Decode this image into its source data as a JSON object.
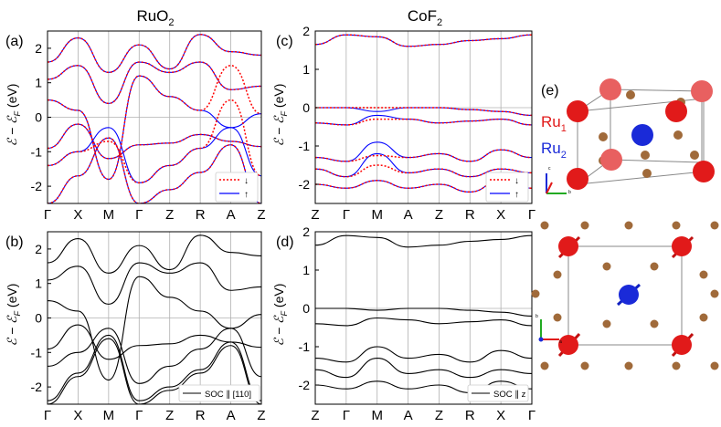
{
  "figure": {
    "col_titles": {
      "left": "RuO",
      "left_sub": "2",
      "right": "CoF",
      "right_sub": "2"
    },
    "ylabel_main": "ℰ − ℰ",
    "ylabel_sub": "F",
    "ylabel_unit": " (eV)",
    "panel_labels": {
      "a": "(a)",
      "b": "(b)",
      "c": "(c)",
      "d": "(d)",
      "e": "(e)"
    },
    "legend_a": {
      "down": "↓",
      "up": "↑"
    },
    "legend_c": {
      "down": "↓",
      "up": "↑"
    },
    "legend_b": "SOC ∥ [110]",
    "legend_d": "SOC ∥ z",
    "crystal_labels": {
      "ru1": "Ru",
      "ru1_sub": "1",
      "ru2": "Ru",
      "ru2_sub": "2"
    },
    "axis_glyphs": {
      "c": "c",
      "a": "a",
      "b": "b"
    }
  },
  "colors": {
    "spin_down": "#ff0000",
    "spin_up": "#0000ff",
    "soc": "#000000",
    "grid": "#b0b0b0",
    "ru1": "#e11a1a",
    "ru2": "#1a2ad8",
    "oxygen": "#a06a3a"
  },
  "chart_data": [
    {
      "id": "a",
      "type": "line",
      "title": "RuO2",
      "ylabel": "ℰ − ℰF (eV)",
      "ylim": [
        -2.5,
        2.5
      ],
      "yticks": [
        -2,
        -1,
        0,
        1,
        2
      ],
      "kpath": [
        "Γ",
        "X",
        "M",
        "Γ",
        "Z",
        "R",
        "A",
        "Z"
      ],
      "legend": [
        "↓",
        "↑"
      ],
      "series": [
        {
          "name": "↑",
          "bands": [
            [
              -2.5,
              -1.7,
              -0.6,
              -2.5,
              -2.1,
              -1.6,
              -0.8,
              -2.5
            ],
            [
              -1.4,
              -1.0,
              -0.3,
              -1.9,
              -1.4,
              -0.9,
              -0.3,
              -1.7
            ],
            [
              -0.9,
              -0.2,
              -1.2,
              -0.8,
              -0.75,
              -0.5,
              -0.7,
              -0.85
            ],
            [
              0.5,
              0.2,
              -1.8,
              1.2,
              0.6,
              0.2,
              -0.3,
              0.1
            ],
            [
              1.1,
              1.5,
              0.4,
              1.6,
              1.3,
              1.6,
              0.8,
              0.9
            ],
            [
              1.6,
              2.3,
              1.3,
              2.1,
              1.4,
              2.4,
              1.9,
              1.8
            ]
          ]
        },
        {
          "name": "↓",
          "bands": [
            [
              -2.5,
              -1.7,
              -0.6,
              -2.5,
              -2.1,
              -1.6,
              -0.8,
              -2.5
            ],
            [
              -1.4,
              -1.0,
              -0.7,
              -1.9,
              -1.4,
              -0.9,
              0.5,
              -1.7
            ],
            [
              -0.9,
              -0.2,
              -1.2,
              -0.8,
              -0.75,
              -0.5,
              -0.7,
              -0.85
            ],
            [
              0.5,
              0.2,
              -1.8,
              1.2,
              0.6,
              0.2,
              1.5,
              0.1
            ],
            [
              1.1,
              1.5,
              0.4,
              1.6,
              1.3,
              1.6,
              0.8,
              0.9
            ],
            [
              1.6,
              2.3,
              1.3,
              2.1,
              1.4,
              2.4,
              1.9,
              1.8
            ]
          ]
        }
      ]
    },
    {
      "id": "b",
      "type": "line",
      "ylabel": "ℰ − ℰF (eV)",
      "ylim": [
        -2.5,
        2.5
      ],
      "yticks": [
        -2,
        -1,
        0,
        1,
        2
      ],
      "kpath": [
        "Γ",
        "X",
        "M",
        "Γ",
        "Z",
        "R",
        "A",
        "Z"
      ],
      "legend": [
        "SOC ∥ [110]"
      ],
      "series": [
        {
          "name": "SOC ∥ [110]",
          "bands": [
            [
              -2.5,
              -1.7,
              -0.6,
              -2.5,
              -2.1,
              -1.6,
              -0.8,
              -2.5
            ],
            [
              -2.4,
              -1.6,
              -0.5,
              -2.4,
              -2.0,
              -1.5,
              -0.7,
              -2.4
            ],
            [
              -1.4,
              -1.0,
              -0.3,
              -1.9,
              -1.4,
              -0.9,
              -0.3,
              -1.7
            ],
            [
              -0.9,
              -0.2,
              -1.2,
              -0.8,
              -0.75,
              -0.5,
              -0.7,
              -0.85
            ],
            [
              0.5,
              0.2,
              -1.8,
              1.2,
              0.6,
              0.2,
              -0.3,
              0.1
            ],
            [
              1.1,
              1.5,
              0.4,
              1.6,
              1.3,
              1.6,
              0.8,
              0.9
            ],
            [
              1.6,
              2.3,
              1.3,
              2.1,
              1.4,
              2.4,
              1.9,
              1.8
            ]
          ]
        }
      ]
    },
    {
      "id": "c",
      "type": "line",
      "title": "CoF2",
      "ylabel": "ℰ − ℰF (eV)",
      "ylim": [
        -2.5,
        2.0
      ],
      "yticks": [
        -2,
        -1,
        0,
        1,
        2
      ],
      "kpath": [
        "Z",
        "Γ",
        "M",
        "A",
        "Z",
        "R",
        "X",
        "Γ"
      ],
      "legend": [
        "↓",
        "↑"
      ],
      "series": [
        {
          "name": "↑",
          "bands": [
            [
              1.65,
              1.9,
              1.85,
              1.6,
              1.65,
              1.75,
              1.8,
              1.9
            ],
            [
              0.0,
              0.0,
              -0.1,
              0.0,
              0.0,
              -0.05,
              -0.1,
              -0.2
            ],
            [
              -0.4,
              -0.45,
              -0.2,
              -0.3,
              -0.4,
              -0.35,
              -0.3,
              -0.45
            ],
            [
              -1.3,
              -1.4,
              -0.9,
              -1.3,
              -1.2,
              -1.4,
              -1.1,
              -1.3
            ],
            [
              -1.6,
              -1.8,
              -1.2,
              -1.7,
              -1.6,
              -1.8,
              -1.6,
              -1.7
            ],
            [
              -2.0,
              -2.1,
              -1.9,
              -2.1,
              -2.0,
              -2.2,
              -1.9,
              -2.1
            ]
          ]
        },
        {
          "name": "↓",
          "bands": [
            [
              1.65,
              1.9,
              1.85,
              1.6,
              1.65,
              1.75,
              1.8,
              1.9
            ],
            [
              0.0,
              0.0,
              0.0,
              0.0,
              0.0,
              -0.05,
              -0.1,
              -0.2
            ],
            [
              -0.4,
              -0.45,
              -0.3,
              -0.3,
              -0.4,
              -0.35,
              -0.3,
              -0.45
            ],
            [
              -1.3,
              -1.4,
              -1.25,
              -1.3,
              -1.2,
              -1.4,
              -1.1,
              -1.3
            ],
            [
              -1.6,
              -1.8,
              -1.5,
              -1.7,
              -1.6,
              -1.8,
              -1.6,
              -1.7
            ],
            [
              -2.0,
              -2.1,
              -1.9,
              -2.1,
              -2.0,
              -2.2,
              -1.9,
              -2.1
            ]
          ]
        }
      ]
    },
    {
      "id": "d",
      "type": "line",
      "ylabel": "ℰ − ℰF (eV)",
      "ylim": [
        -2.5,
        2.0
      ],
      "yticks": [
        -2,
        -1,
        0,
        1,
        2
      ],
      "kpath": [
        "Z",
        "Γ",
        "M",
        "A",
        "Z",
        "R",
        "X",
        "Γ"
      ],
      "legend": [
        "SOC ∥ z"
      ],
      "series": [
        {
          "name": "SOC ∥ z",
          "bands": [
            [
              1.65,
              1.9,
              1.85,
              1.6,
              1.65,
              1.75,
              1.8,
              1.9
            ],
            [
              0.0,
              0.0,
              -0.05,
              0.0,
              0.0,
              -0.05,
              -0.1,
              -0.2
            ],
            [
              -0.4,
              -0.45,
              -0.25,
              -0.3,
              -0.4,
              -0.35,
              -0.3,
              -0.45
            ],
            [
              -1.3,
              -1.4,
              -1.0,
              -1.3,
              -1.2,
              -1.4,
              -1.1,
              -1.3
            ],
            [
              -1.6,
              -1.8,
              -1.3,
              -1.7,
              -1.6,
              -1.8,
              -1.6,
              -1.7
            ],
            [
              -2.0,
              -2.1,
              -1.9,
              -2.1,
              -2.0,
              -2.2,
              -1.9,
              -2.1
            ]
          ]
        }
      ]
    }
  ]
}
